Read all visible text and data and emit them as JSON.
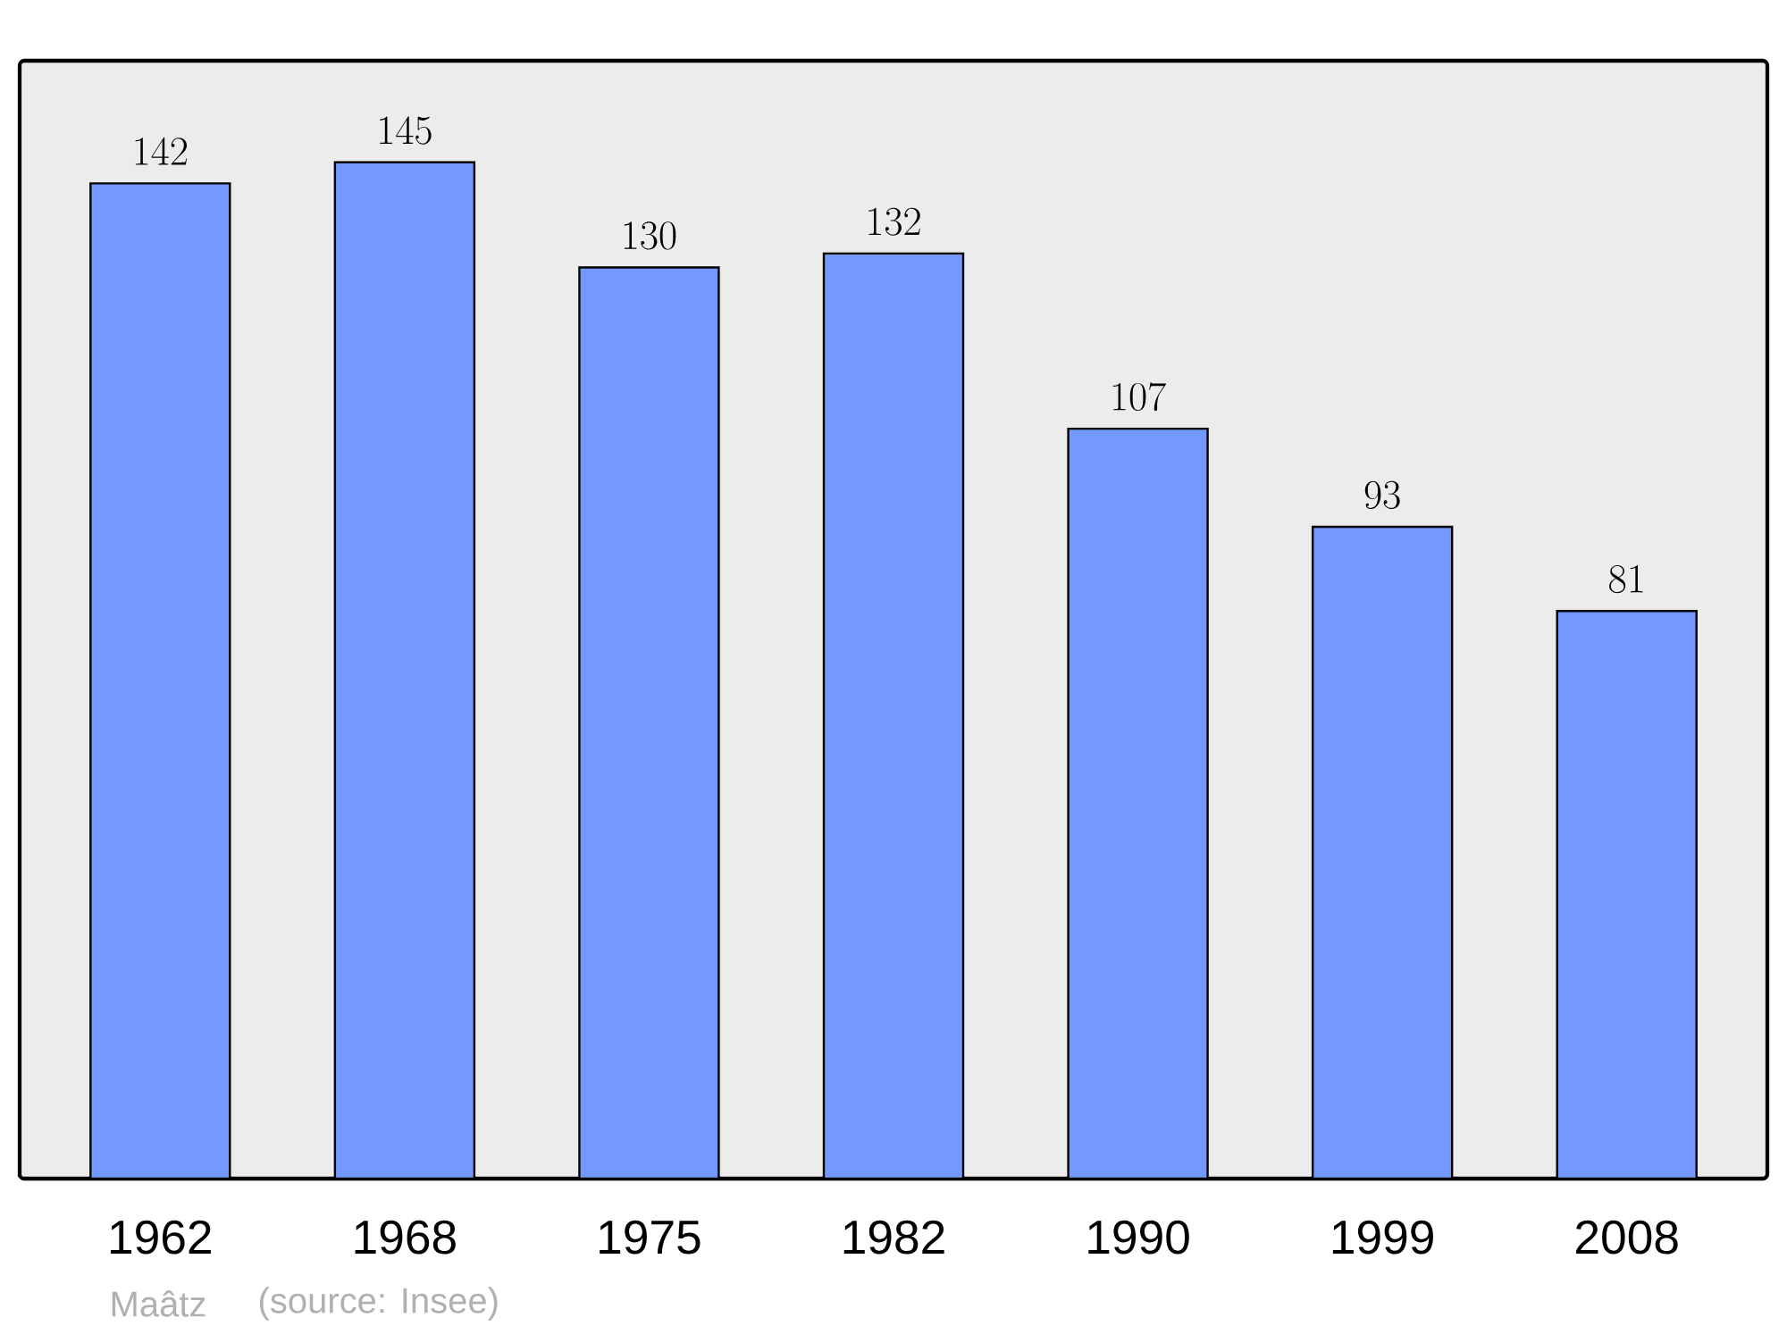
{
  "chart_data": {
    "type": "bar",
    "categories": [
      "1962",
      "1968",
      "1975",
      "1982",
      "1990",
      "1999",
      "2008"
    ],
    "values": [
      142,
      145,
      130,
      132,
      107,
      93,
      81
    ],
    "color": "#7399ff",
    "data_labels": true,
    "tick_labels": "x",
    "annotations": [
      "Maâtz",
      "(source: Insee)"
    ]
  }
}
